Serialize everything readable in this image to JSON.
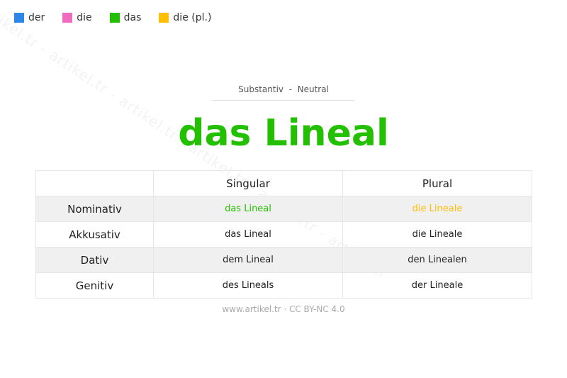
{
  "legend": [
    {
      "label": "der",
      "color": "#2e86e8"
    },
    {
      "label": "die",
      "color": "#f06cc0"
    },
    {
      "label": "das",
      "color": "#22c000"
    },
    {
      "label": "die (pl.)",
      "color": "#ffbf00"
    }
  ],
  "watermark": "artikel.tr - artikel.tr - artikel.tr - artikel.tr - artikel.tr - artikel.tr",
  "subtitle": "Substantiv  -  Neutral",
  "title": "das Lineal",
  "table": {
    "headers": [
      "",
      "Singular",
      "Plural"
    ],
    "rows": [
      {
        "case": "Nominativ",
        "singular": "das Lineal",
        "plural": "die Lineale"
      },
      {
        "case": "Akkusativ",
        "singular": "das Lineal",
        "plural": "die Lineale"
      },
      {
        "case": "Dativ",
        "singular": "dem Lineal",
        "plural": "den Linealen"
      },
      {
        "case": "Genitiv",
        "singular": "des Lineals",
        "plural": "der Lineale"
      }
    ],
    "highlight_colors": {
      "singular": "#22c000",
      "plural": "#ffbf00"
    }
  },
  "footer": "www.artikel.tr · CC BY-NC 4.0"
}
